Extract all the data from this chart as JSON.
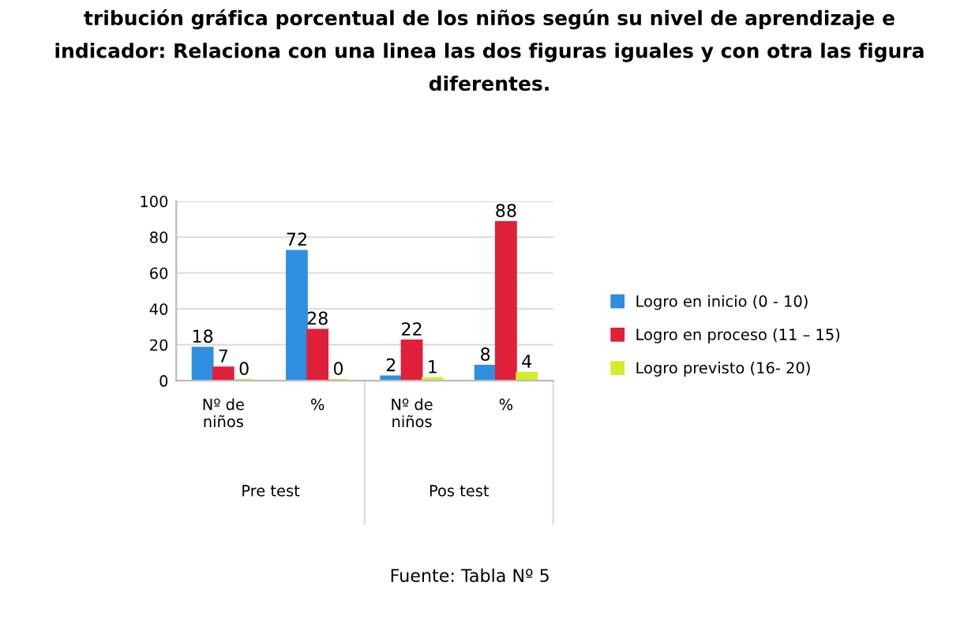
{
  "chart_data": {
    "type": "bar",
    "title": "tribución gráfica porcentual de los niños según su nivel de aprendizaje e\nindicador: Relaciona con una linea las dos figuras iguales y con otra las figura\ndiferentes.",
    "categories": [
      "Nº de\nniños",
      "%",
      "Nº de\nniños",
      "%"
    ],
    "series": [
      {
        "name": "Logro en inicio (0 - 10)",
        "color": "#2e8fe0",
        "values": [
          18,
          72,
          2,
          8
        ]
      },
      {
        "name": "Logro en proceso (11 – 15)",
        "color": "#e0203a",
        "values": [
          7,
          28,
          22,
          88
        ]
      },
      {
        "name": "Logro previsto (16- 20)",
        "color": "#d4ec2a",
        "values": [
          0,
          0,
          1,
          4
        ]
      }
    ],
    "ylim": [
      0,
      100
    ],
    "yticks": [
      0,
      20,
      40,
      60,
      80,
      100
    ],
    "grid": "y",
    "legend": "right",
    "data_labels": true,
    "annotations": [
      "Pre test",
      "Pos test",
      "Fuente: Tabla Nº 5"
    ]
  }
}
